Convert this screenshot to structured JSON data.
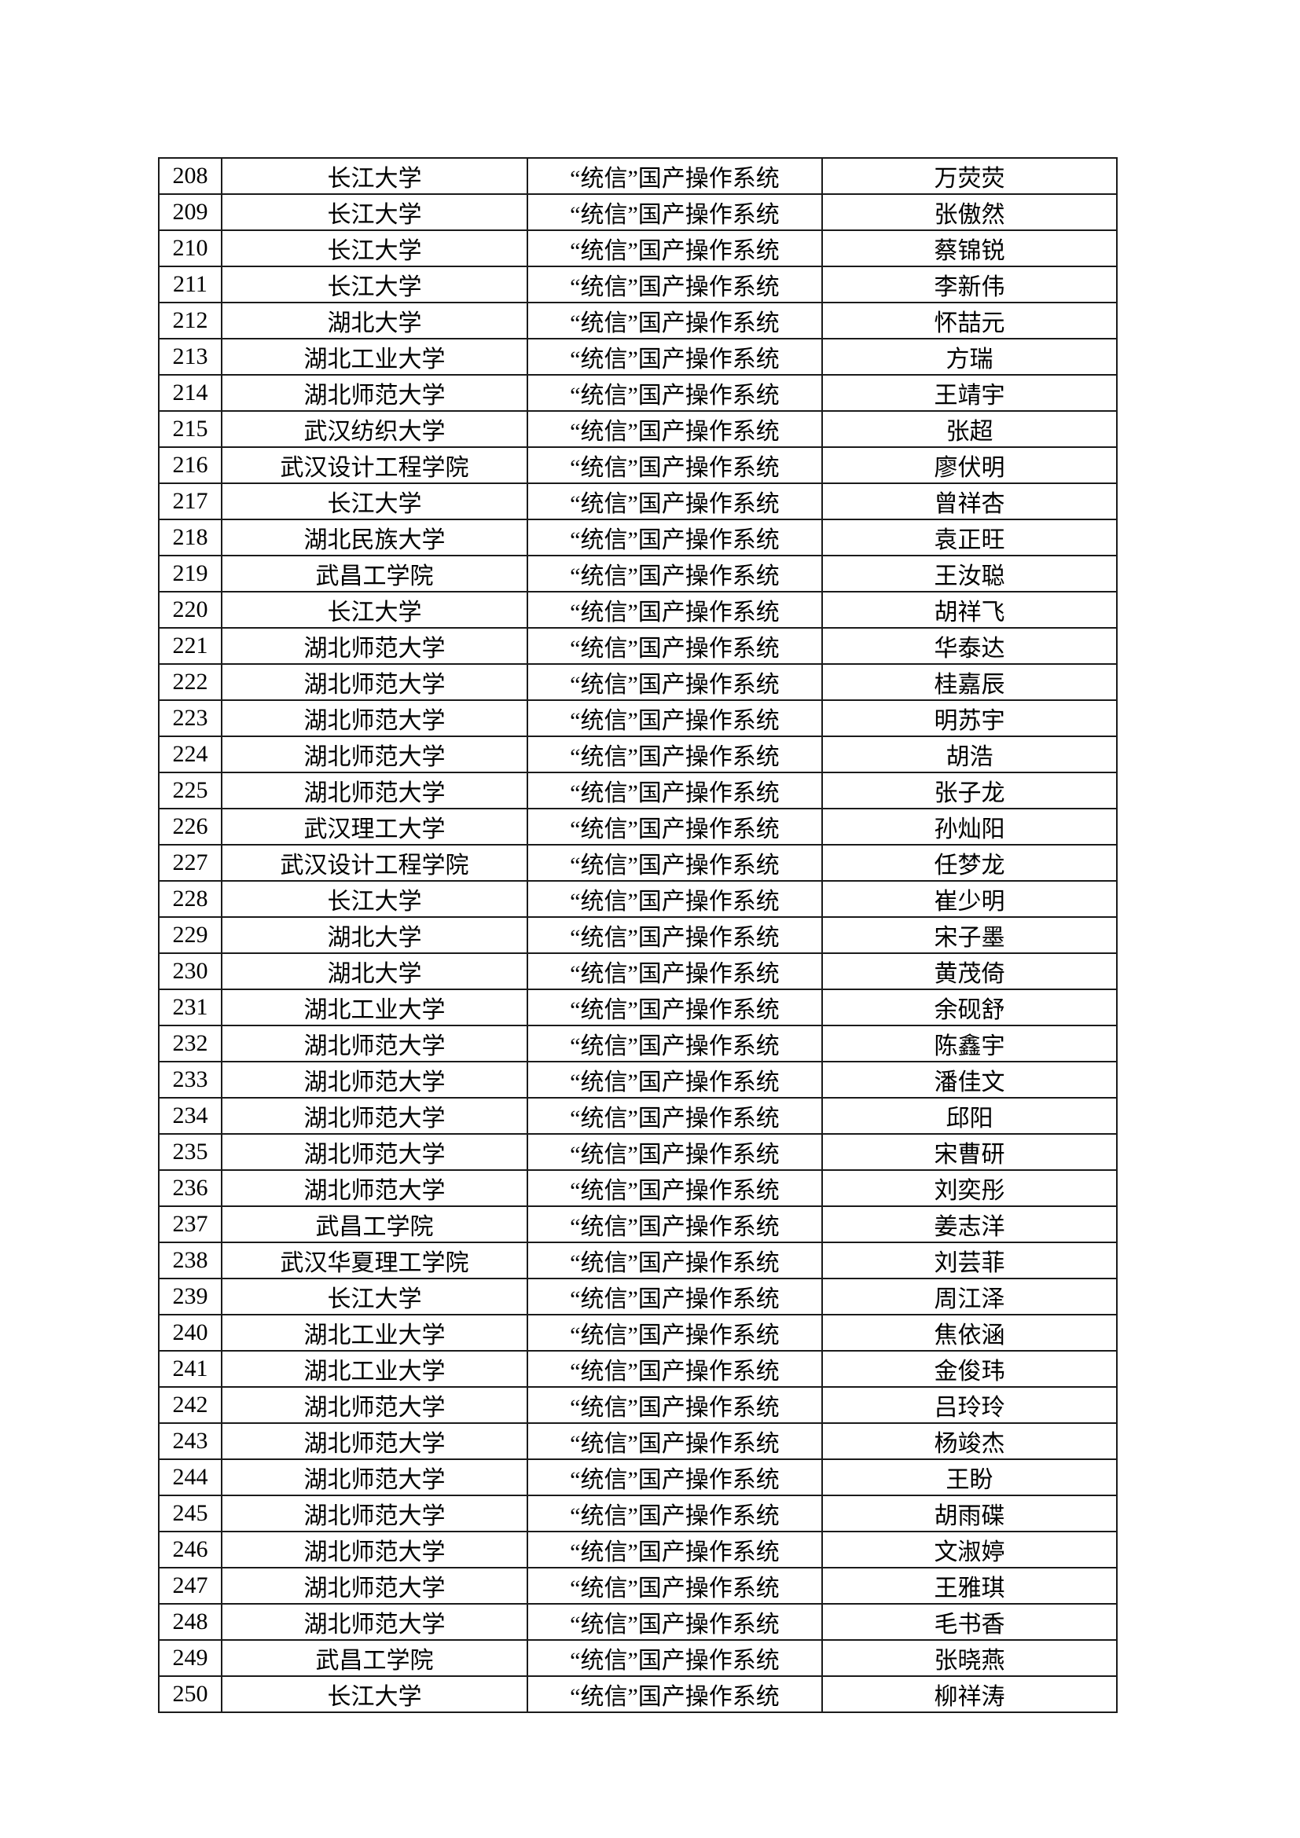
{
  "page": {
    "background_color": "#ffffff",
    "text_color": "#000000",
    "border_color": "#1b1b1b"
  },
  "table": {
    "first_row_no": "208",
    "last_row_no": "250",
    "rows": [
      {
        "no": "208",
        "university": "长江大学",
        "course": "“统信”国产操作系统",
        "name": "万荧荧"
      },
      {
        "no": "209",
        "university": "长江大学",
        "course": "“统信”国产操作系统",
        "name": "张傲然"
      },
      {
        "no": "210",
        "university": "长江大学",
        "course": "“统信”国产操作系统",
        "name": "蔡锦锐"
      },
      {
        "no": "211",
        "university": "长江大学",
        "course": "“统信”国产操作系统",
        "name": "李新伟"
      },
      {
        "no": "212",
        "university": "湖北大学",
        "course": "“统信”国产操作系统",
        "name": "怀喆元"
      },
      {
        "no": "213",
        "university": "湖北工业大学",
        "course": "“统信”国产操作系统",
        "name": "方瑞"
      },
      {
        "no": "214",
        "university": "湖北师范大学",
        "course": "“统信”国产操作系统",
        "name": "王靖宇"
      },
      {
        "no": "215",
        "university": "武汉纺织大学",
        "course": "“统信”国产操作系统",
        "name": "张超"
      },
      {
        "no": "216",
        "university": "武汉设计工程学院",
        "course": "“统信”国产操作系统",
        "name": "廖伏明"
      },
      {
        "no": "217",
        "university": "长江大学",
        "course": "“统信”国产操作系统",
        "name": "曾祥杏"
      },
      {
        "no": "218",
        "university": "湖北民族大学",
        "course": "“统信”国产操作系统",
        "name": "袁正旺"
      },
      {
        "no": "219",
        "university": "武昌工学院",
        "course": "“统信”国产操作系统",
        "name": "王汝聪"
      },
      {
        "no": "220",
        "university": "长江大学",
        "course": "“统信”国产操作系统",
        "name": "胡祥飞"
      },
      {
        "no": "221",
        "university": "湖北师范大学",
        "course": "“统信”国产操作系统",
        "name": "华泰达"
      },
      {
        "no": "222",
        "university": "湖北师范大学",
        "course": "“统信”国产操作系统",
        "name": "桂嘉辰"
      },
      {
        "no": "223",
        "university": "湖北师范大学",
        "course": "“统信”国产操作系统",
        "name": "明苏宇"
      },
      {
        "no": "224",
        "university": "湖北师范大学",
        "course": "“统信”国产操作系统",
        "name": "胡浩"
      },
      {
        "no": "225",
        "university": "湖北师范大学",
        "course": "“统信”国产操作系统",
        "name": "张子龙"
      },
      {
        "no": "226",
        "university": "武汉理工大学",
        "course": "“统信”国产操作系统",
        "name": "孙灿阳"
      },
      {
        "no": "227",
        "university": "武汉设计工程学院",
        "course": "“统信”国产操作系统",
        "name": "任梦龙"
      },
      {
        "no": "228",
        "university": "长江大学",
        "course": "“统信”国产操作系统",
        "name": "崔少明"
      },
      {
        "no": "229",
        "university": "湖北大学",
        "course": "“统信”国产操作系统",
        "name": "宋子墨"
      },
      {
        "no": "230",
        "university": "湖北大学",
        "course": "“统信”国产操作系统",
        "name": "黄茂倚"
      },
      {
        "no": "231",
        "university": "湖北工业大学",
        "course": "“统信”国产操作系统",
        "name": "余砚舒"
      },
      {
        "no": "232",
        "university": "湖北师范大学",
        "course": "“统信”国产操作系统",
        "name": "陈鑫宇"
      },
      {
        "no": "233",
        "university": "湖北师范大学",
        "course": "“统信”国产操作系统",
        "name": "潘佳文"
      },
      {
        "no": "234",
        "university": "湖北师范大学",
        "course": "“统信”国产操作系统",
        "name": "邱阳"
      },
      {
        "no": "235",
        "university": "湖北师范大学",
        "course": "“统信”国产操作系统",
        "name": "宋曹研"
      },
      {
        "no": "236",
        "university": "湖北师范大学",
        "course": "“统信”国产操作系统",
        "name": "刘奕彤"
      },
      {
        "no": "237",
        "university": "武昌工学院",
        "course": "“统信”国产操作系统",
        "name": "姜志洋"
      },
      {
        "no": "238",
        "university": "武汉华夏理工学院",
        "course": "“统信”国产操作系统",
        "name": "刘芸菲"
      },
      {
        "no": "239",
        "university": "长江大学",
        "course": "“统信”国产操作系统",
        "name": "周江泽"
      },
      {
        "no": "240",
        "university": "湖北工业大学",
        "course": "“统信”国产操作系统",
        "name": "焦依涵"
      },
      {
        "no": "241",
        "university": "湖北工业大学",
        "course": "“统信”国产操作系统",
        "name": "金俊玮"
      },
      {
        "no": "242",
        "university": "湖北师范大学",
        "course": "“统信”国产操作系统",
        "name": "吕玲玲"
      },
      {
        "no": "243",
        "university": "湖北师范大学",
        "course": "“统信”国产操作系统",
        "name": "杨竣杰"
      },
      {
        "no": "244",
        "university": "湖北师范大学",
        "course": "“统信”国产操作系统",
        "name": "王盼"
      },
      {
        "no": "245",
        "university": "湖北师范大学",
        "course": "“统信”国产操作系统",
        "name": "胡雨碟"
      },
      {
        "no": "246",
        "university": "湖北师范大学",
        "course": "“统信”国产操作系统",
        "name": "文淑婷"
      },
      {
        "no": "247",
        "university": "湖北师范大学",
        "course": "“统信”国产操作系统",
        "name": "王雅琪"
      },
      {
        "no": "248",
        "university": "湖北师范大学",
        "course": "“统信”国产操作系统",
        "name": "毛书香"
      },
      {
        "no": "249",
        "university": "武昌工学院",
        "course": "“统信”国产操作系统",
        "name": "张晓燕"
      },
      {
        "no": "250",
        "university": "长江大学",
        "course": "“统信”国产操作系统",
        "name": "柳祥涛"
      }
    ]
  }
}
